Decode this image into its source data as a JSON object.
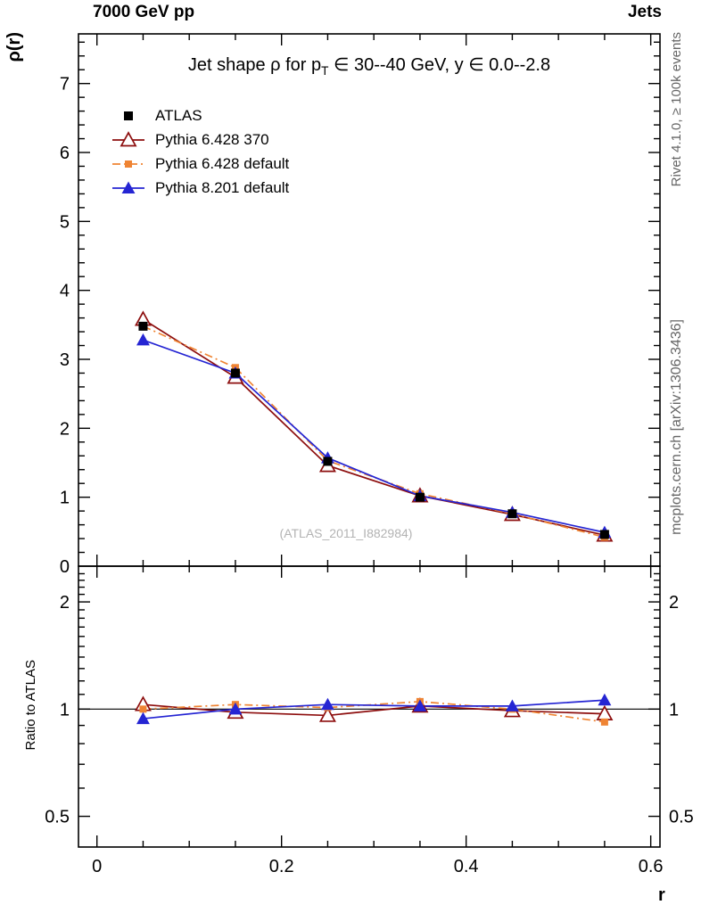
{
  "header": {
    "left": "7000 GeV pp",
    "right": "Jets"
  },
  "titles": {
    "plot_title": "Jet shape ρ for p_T ∈ 30--40 GeV, y ∈ 0.0--2.8",
    "watermark": "(ATLAS_2011_I882984)",
    "rivet_note": "Rivet 4.1.0, ≥ 100k events",
    "mcplots_note": "mcplots.cern.ch [arXiv:1306.3436]"
  },
  "chart_data": [
    {
      "type": "scatter",
      "panel": "main",
      "title": "Jet shape ρ for p_T ∈ 30--40 GeV, y ∈ 0.0--2.8",
      "xlabel": "r",
      "ylabel": "ρ(r)",
      "xlim": [
        -0.02,
        0.61
      ],
      "ylim": [
        0,
        7.72
      ],
      "xticks": [
        0,
        0.2,
        0.4,
        0.6
      ],
      "yticks": [
        0,
        1,
        2,
        3,
        4,
        5,
        6,
        7
      ],
      "grid": false,
      "legend_position": "top-left",
      "x": [
        0.05,
        0.15,
        0.25,
        0.35,
        0.45,
        0.55
      ],
      "series": [
        {
          "name": "ATLAS",
          "color": "#000000",
          "marker": "square-filled",
          "msize": 10,
          "line": "none",
          "values": [
            3.48,
            2.8,
            1.52,
            1.0,
            0.76,
            0.46
          ]
        },
        {
          "name": "Pythia 6.428 370",
          "color": "#8d0e0e",
          "marker": "triangle-open",
          "msize": 13,
          "line": "solid",
          "values": [
            3.58,
            2.74,
            1.46,
            1.02,
            0.75,
            0.45
          ]
        },
        {
          "name": "Pythia 6.428 default",
          "color": "#ef8433",
          "marker": "square-filled",
          "msize": 8,
          "line": "dashdot",
          "values": [
            3.48,
            2.88,
            1.53,
            1.05,
            0.76,
            0.42
          ]
        },
        {
          "name": "Pythia 8.201 default",
          "color": "#2525d3",
          "marker": "triangle-filled",
          "msize": 12,
          "line": "solid",
          "values": [
            3.28,
            2.8,
            1.57,
            1.02,
            0.78,
            0.49
          ]
        }
      ]
    },
    {
      "type": "scatter",
      "panel": "ratio",
      "ylabel": "Ratio to ATLAS",
      "yscale": "log",
      "ylim": [
        0.41,
        2.52
      ],
      "yticks": [
        0.5,
        1,
        2
      ],
      "reference": "ATLAS",
      "x": [
        0.05,
        0.15,
        0.25,
        0.35,
        0.45,
        0.55
      ],
      "series": [
        {
          "name": "Pythia 6.428 370",
          "values": [
            1.03,
            0.98,
            0.96,
            1.02,
            0.99,
            0.97
          ]
        },
        {
          "name": "Pythia 6.428 default",
          "values": [
            1.0,
            1.03,
            1.01,
            1.05,
            1.0,
            0.92
          ]
        },
        {
          "name": "Pythia 8.201 default",
          "values": [
            0.94,
            1.0,
            1.03,
            1.02,
            1.02,
            1.06
          ]
        }
      ]
    }
  ]
}
